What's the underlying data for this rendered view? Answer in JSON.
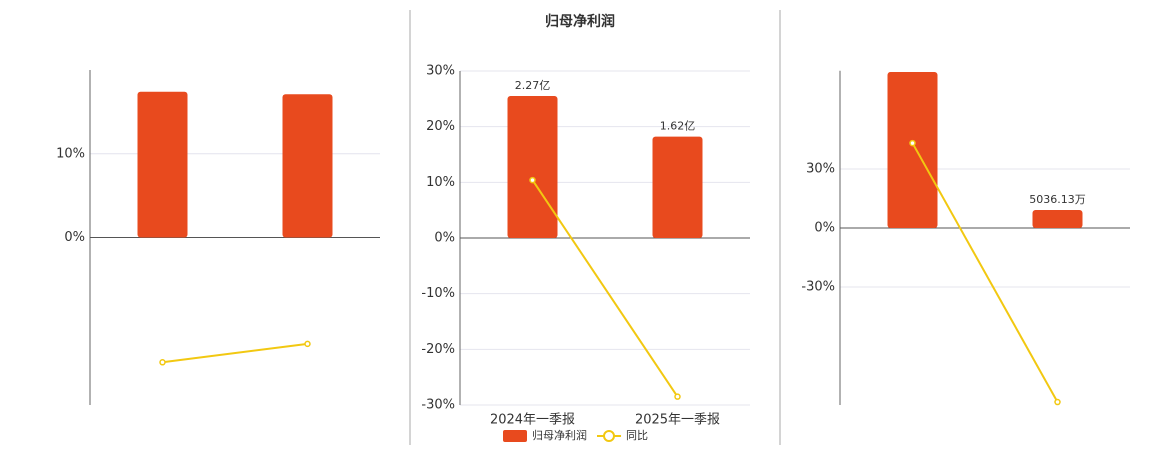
{
  "chart_data": [
    {
      "type": "combo",
      "categories": [
        null,
        null
      ],
      "ylim": [
        -20,
        20
      ],
      "yticks": [
        {
          "value": 10,
          "label": "10%"
        },
        {
          "value": 0,
          "label": "0%"
        }
      ],
      "grid": true,
      "series": [
        {
          "type": "bar",
          "color": "#e84a1e",
          "values": [
            17.4,
            17.1
          ]
        },
        {
          "type": "line",
          "color": "#f2c811",
          "values": [
            -14.9,
            -12.7
          ]
        }
      ]
    },
    {
      "type": "combo",
      "title": "归母净利润",
      "categories": [
        "2024年一季报",
        "2025年一季报"
      ],
      "ylim": [
        -30,
        30
      ],
      "yticks": [
        {
          "value": 30,
          "label": "30%"
        },
        {
          "value": 20,
          "label": "20%"
        },
        {
          "value": 10,
          "label": "10%"
        },
        {
          "value": 0,
          "label": "0%"
        },
        {
          "value": -10,
          "label": "-10%"
        },
        {
          "value": -20,
          "label": "-20%"
        },
        {
          "value": -30,
          "label": "-30%"
        }
      ],
      "y2lim": [
        -2.67,
        2.67
      ],
      "grid": true,
      "legend": "bottom",
      "series": [
        {
          "type": "bar",
          "name": "归母净利润",
          "color": "#e84a1e",
          "axis": "y2",
          "values": [
            2.27,
            1.62
          ],
          "value_labels": [
            "2.27亿",
            "1.62亿"
          ]
        },
        {
          "type": "line",
          "name": "同比",
          "color": "#f2c811",
          "values": [
            10.4,
            -28.5
          ]
        }
      ]
    },
    {
      "type": "combo",
      "categories": [
        null,
        null
      ],
      "ylim": [
        -90,
        80
      ],
      "yticks": [
        {
          "value": 30,
          "label": "30%"
        },
        {
          "value": 0,
          "label": "0%"
        },
        {
          "value": -30,
          "label": "-30%"
        }
      ],
      "y2lim": [
        -49521,
        44019
      ],
      "grid": true,
      "series": [
        {
          "type": "bar",
          "color": "#e84a1e",
          "axis": "y2",
          "values": [
            43650,
            5036.13
          ],
          "value_labels": [
            null,
            "5036.13万"
          ]
        },
        {
          "type": "line",
          "color": "#f2c811",
          "values": [
            43.2,
            -88.5
          ]
        }
      ]
    }
  ]
}
